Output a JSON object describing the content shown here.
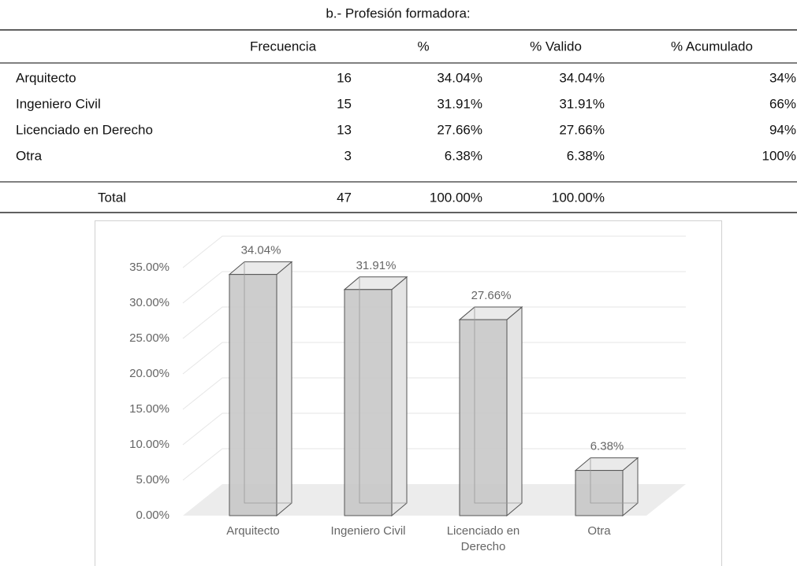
{
  "title": "b.- Profesión formadora:",
  "table": {
    "header": [
      "Frecuencia",
      "%",
      "% Valido",
      "% Acumulado"
    ],
    "rows": [
      [
        "Arquitecto",
        "16",
        "34.04%",
        "34.04%",
        "34%"
      ],
      [
        "Ingeniero Civil",
        "15",
        "31.91%",
        "31.91%",
        "66%"
      ],
      [
        "Licenciado en Derecho",
        "13",
        "27.66%",
        "27.66%",
        "94%"
      ],
      [
        "Otra",
        "3",
        "6.38%",
        "6.38%",
        "100%"
      ]
    ],
    "total": [
      "Total",
      "47",
      "100.00%",
      "100.00%"
    ]
  },
  "chart_data": {
    "type": "bar",
    "categories": [
      "Arquitecto",
      "Ingeniero Civil",
      "Licenciado en Derecho",
      "Otra"
    ],
    "values": [
      34.04,
      31.91,
      27.66,
      6.38
    ],
    "value_labels": [
      "34.04%",
      "31.91%",
      "27.66%",
      "6.38%"
    ],
    "color": "#c8c8c8",
    "ylim": [
      0,
      40
    ],
    "yticks": [
      {
        "value": 0,
        "label": "0.00%"
      },
      {
        "value": 5,
        "label": "5.00%"
      },
      {
        "value": 10,
        "label": "10.00%"
      },
      {
        "value": 15,
        "label": "15.00%"
      },
      {
        "value": 20,
        "label": "20.00%"
      },
      {
        "value": 25,
        "label": "25.00%"
      },
      {
        "value": 30,
        "label": "30.00%"
      },
      {
        "value": 35,
        "label": "35.00%"
      }
    ],
    "grid": true
  }
}
